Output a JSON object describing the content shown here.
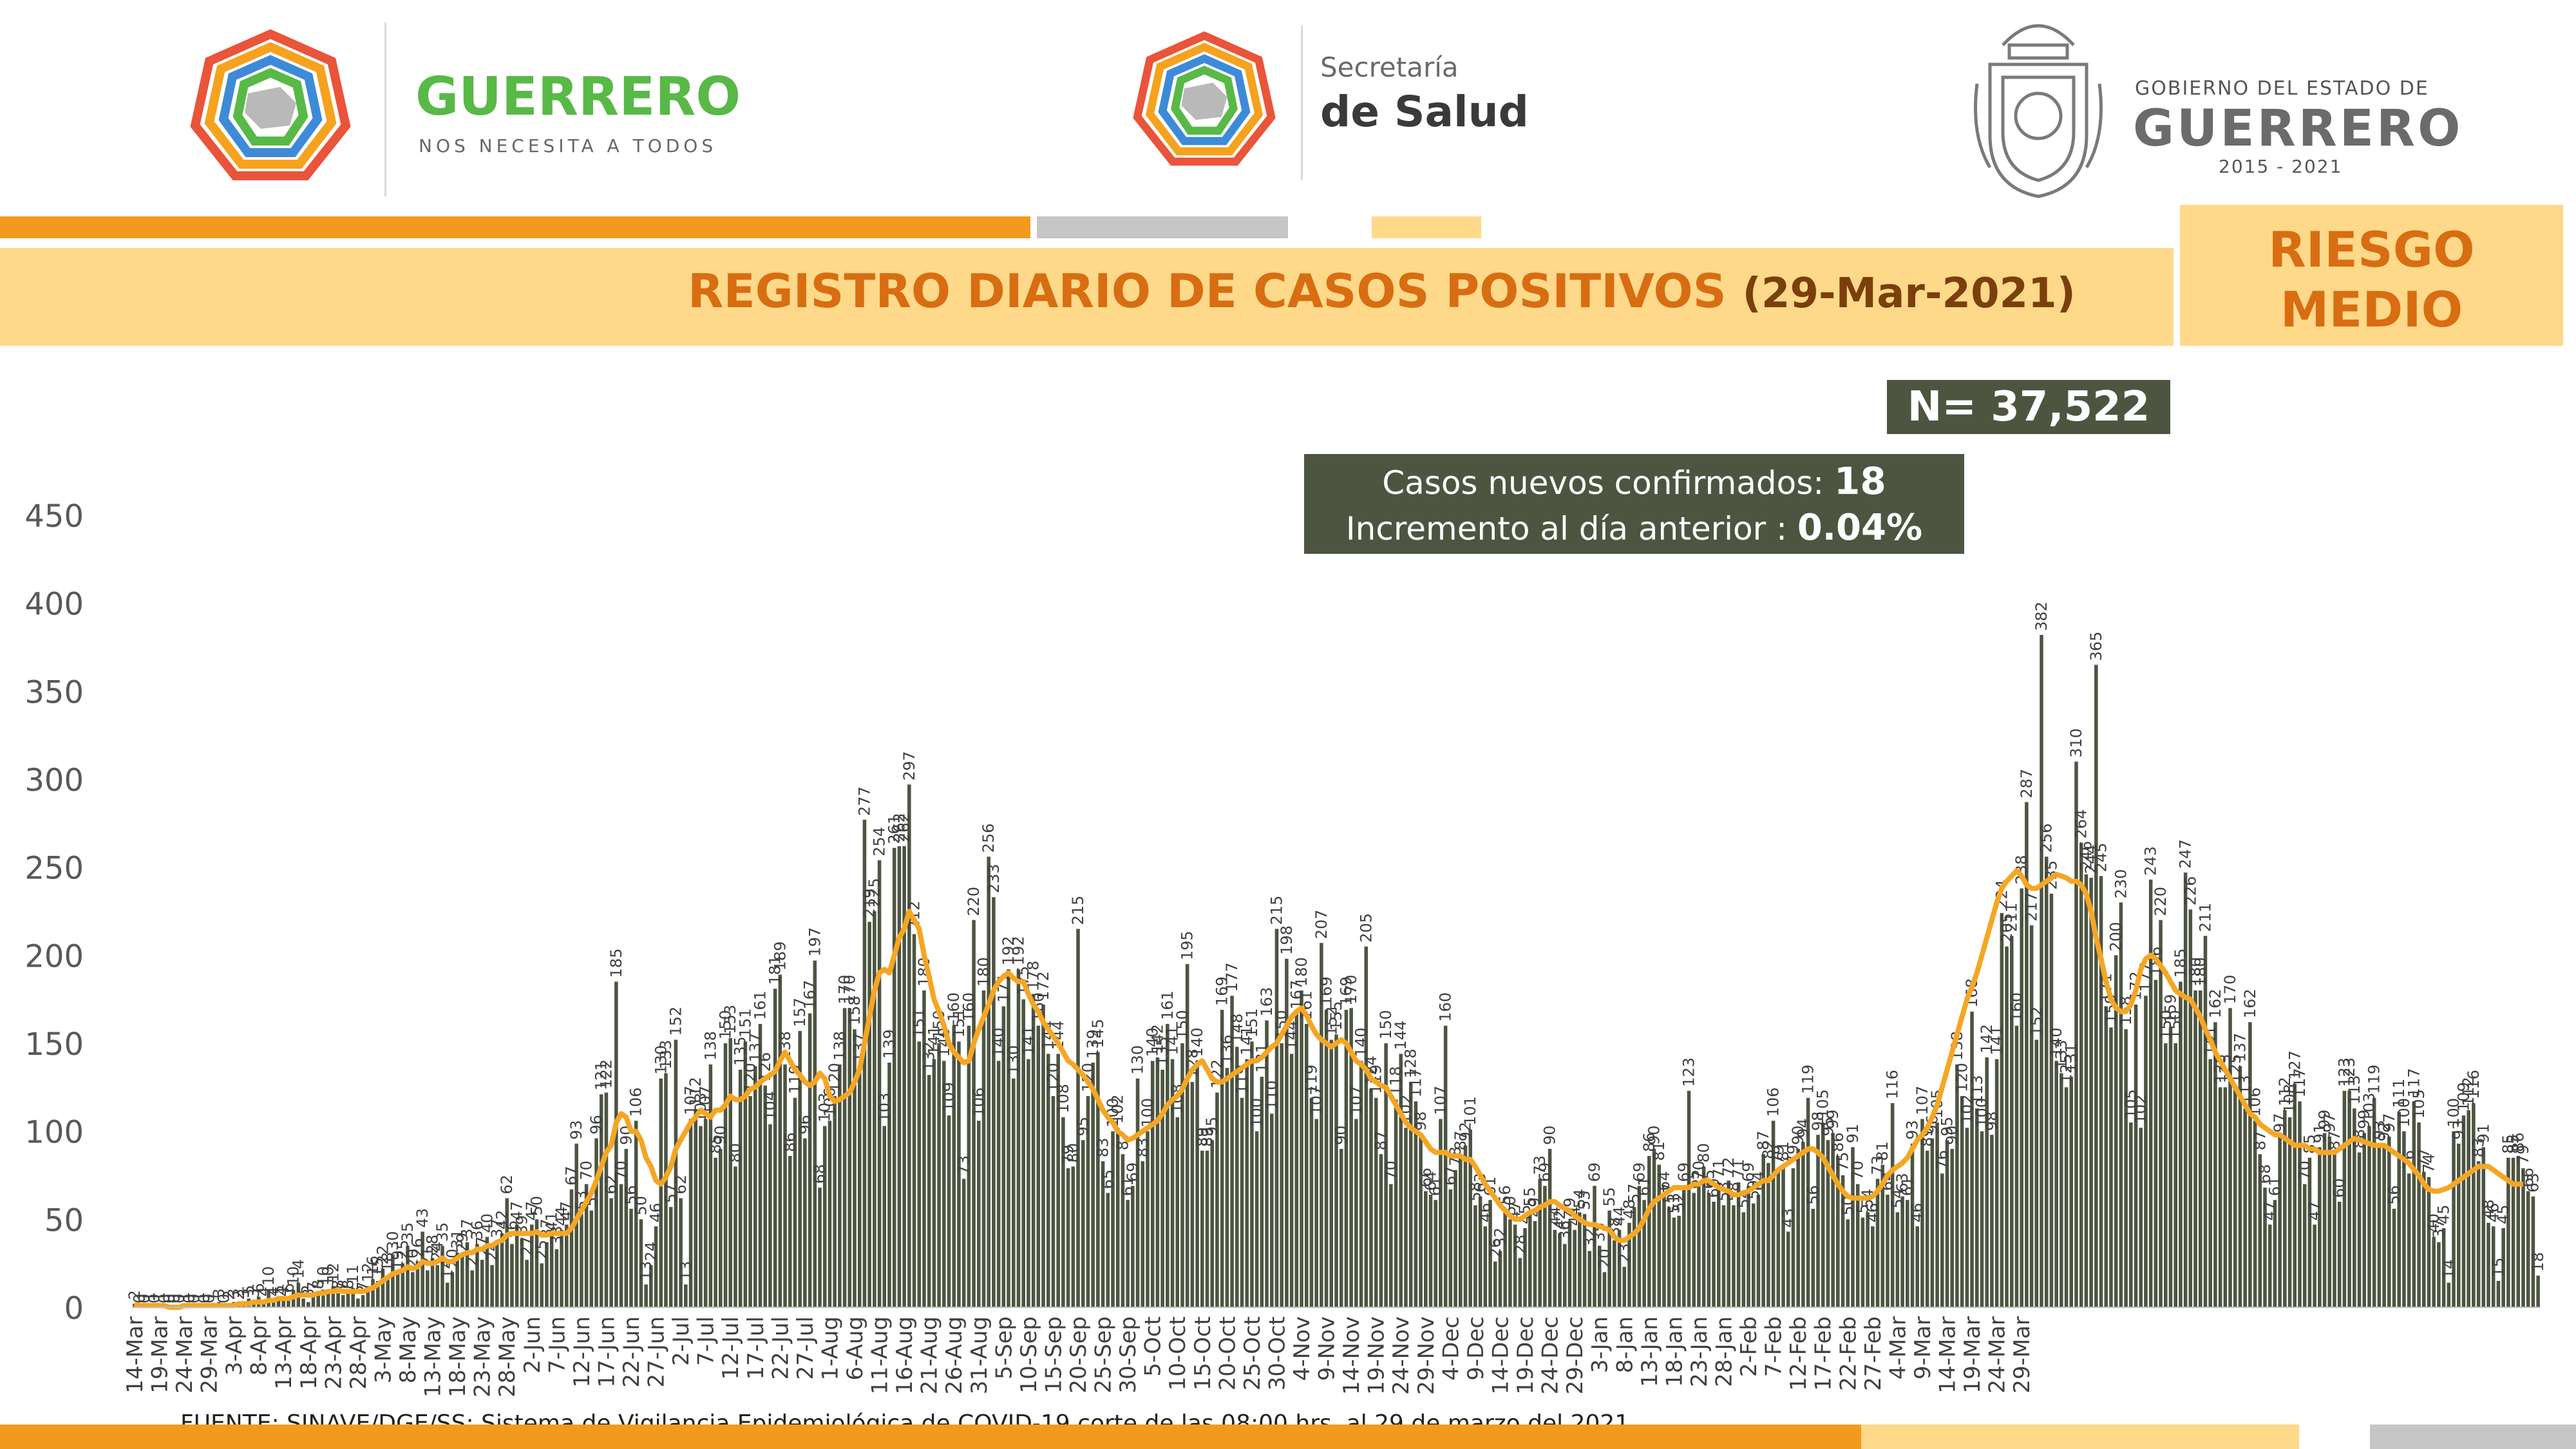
{
  "header": {
    "guerrero_logo": {
      "title": "GUERRERO",
      "subtitle": "NOS NECESITA A TODOS"
    },
    "salud_logo": {
      "line1": "Secretaría",
      "line2": "de Salud"
    },
    "gobierno_logo": {
      "line1": "GOBIERNO DEL ESTADO DE",
      "line2": "GUERRERO",
      "line3": "2015 - 2021"
    }
  },
  "banner": {
    "title": "REGISTRO DIARIO DE CASOS POSITIVOS",
    "date": "(29-Mar-2021)",
    "risk_line1": "RIESGO",
    "risk_line2": "MEDIO"
  },
  "stats": {
    "total": "N= 37,522",
    "new_cases_label": "Casos nuevos confirmados: ",
    "new_cases_value": "18",
    "increment_label": "Incremento al día anterior : ",
    "increment_value": "0.04%"
  },
  "source": "FUENTE: SINAVE/DGE/SS: Sistema de Vigilancia Epidemiológica de COVID-19 corte de las 08:00 hrs. al 29 de marzo del 2021.",
  "colors": {
    "bar": "#4d5541",
    "moving_average": "#f5a623",
    "orange": "#f39a1e",
    "gray": "#c6c6c6",
    "light_yellow": "#ffd98a",
    "title_orange": "#d86d12"
  },
  "chart_data": {
    "type": "bar",
    "ylim": [
      0,
      450
    ],
    "yticks": [
      0,
      50,
      100,
      150,
      200,
      250,
      300,
      350,
      400,
      450
    ],
    "grid": false,
    "legend": "none",
    "start_date": "14-Mar",
    "end_date": "29-Mar",
    "xtick_labels": [
      "14-Mar",
      "19-Mar",
      "24-Mar",
      "29-Mar",
      "3-Apr",
      "8-Apr",
      "13-Apr",
      "18-Apr",
      "23-Apr",
      "28-Apr",
      "3-May",
      "8-May",
      "13-May",
      "18-May",
      "23-May",
      "28-May",
      "2-Jun",
      "7-Jun",
      "12-Jun",
      "17-Jun",
      "22-Jun",
      "27-Jun",
      "2-Jul",
      "7-Jul",
      "12-Jul",
      "17-Jul",
      "22-Jul",
      "27-Jul",
      "1-Aug",
      "6-Aug",
      "11-Aug",
      "16-Aug",
      "21-Aug",
      "26-Aug",
      "31-Aug",
      "5-Sep",
      "10-Sep",
      "15-Sep",
      "20-Sep",
      "25-Sep",
      "30-Sep",
      "5-Oct",
      "10-Oct",
      "15-Oct",
      "20-Oct",
      "25-Oct",
      "30-Oct",
      "4-Nov",
      "9-Nov",
      "14-Nov",
      "19-Nov",
      "24-Nov",
      "29-Nov",
      "4-Dec",
      "9-Dec",
      "14-Dec",
      "19-Dec",
      "24-Dec",
      "29-Dec",
      "3-Jan",
      "8-Jan",
      "13-Jan",
      "18-Jan",
      "23-Jan",
      "28-Jan",
      "2-Feb",
      "7-Feb",
      "12-Feb",
      "17-Feb",
      "22-Feb",
      "27-Feb",
      "4-Mar",
      "9-Mar",
      "14-Mar",
      "19-Mar",
      "24-Mar",
      "29-Mar"
    ],
    "series": [
      {
        "values": [
          2,
          0,
          0,
          1,
          0,
          1,
          0,
          0,
          0,
          0,
          1,
          0,
          0,
          1,
          0,
          0,
          1,
          3,
          0,
          2,
          3,
          2,
          3,
          5,
          3,
          6,
          4,
          10,
          4,
          5,
          4,
          6,
          10,
          14,
          5,
          3,
          7,
          8,
          10,
          10,
          12,
          8,
          7,
          8,
          11,
          5,
          7,
          12,
          16,
          15,
          22,
          18,
          30,
          19,
          25,
          35,
          20,
          26,
          43,
          21,
          28,
          24,
          35,
          14,
          20,
          31,
          29,
          37,
          21,
          36,
          27,
          40,
          24,
          37,
          42,
          62,
          36,
          47,
          39,
          27,
          47,
          50,
          25,
          37,
          41,
          33,
          44,
          47,
          67,
          93,
          53,
          70,
          55,
          96,
          121,
          122,
          62,
          185,
          70,
          90,
          56,
          106,
          50,
          13,
          24,
          46,
          130,
          133,
          57,
          152,
          62,
          13,
          107,
          112,
          103,
          107,
          138,
          85,
          90,
          150,
          153,
          80,
          135,
          151,
          120,
          137,
          161,
          126,
          104,
          181,
          189,
          138,
          86,
          119,
          157,
          96,
          167,
          197,
          68,
          103,
          106,
          120,
          138,
          170,
          170,
          158,
          137,
          277,
          219,
          225,
          254,
          103,
          139,
          261,
          262,
          262,
          297,
          212,
          151,
          180,
          132,
          141,
          150,
          140,
          109,
          160,
          151,
          73,
          160,
          220,
          106,
          180,
          256,
          233,
          140,
          171,
          192,
          130,
          192,
          175,
          141,
          178,
          160,
          172,
          144,
          120,
          144,
          108,
          79,
          80,
          215,
          95,
          120,
          139,
          145,
          83,
          65,
          100,
          102,
          87,
          61,
          69,
          130,
          83,
          100,
          140,
          142,
          135,
          161,
          141,
          108,
          150,
          195,
          128,
          140,
          89,
          89,
          95,
          122,
          169,
          136,
          177,
          148,
          119,
          141,
          151,
          100,
          131,
          163,
          110,
          215,
          150,
          198,
          144,
          167,
          180,
          161,
          119,
          107,
          207,
          169,
          152,
          155,
          90,
          169,
          170,
          107,
          140,
          205,
          124,
          119,
          87,
          150,
          70,
          118,
          144,
          102,
          128,
          117,
          98,
          66,
          64,
          61,
          107,
          160,
          67,
          78,
          87,
          92,
          101,
          58,
          63,
          46,
          61,
          26,
          32,
          56,
          50,
          47,
          28,
          45,
          55,
          49,
          73,
          69,
          90,
          44,
          42,
          36,
          49,
          44,
          54,
          53,
          32,
          69,
          35,
          20,
          55,
          38,
          44,
          23,
          48,
          57,
          69,
          61,
          86,
          90,
          81,
          64,
          57,
          51,
          52,
          69,
          123,
          65,
          70,
          80,
          65,
          60,
          71,
          58,
          72,
          58,
          71,
          54,
          69,
          59,
          64,
          87,
          82,
          106,
          79,
          81,
          43,
          79,
          90,
          94,
          119,
          56,
          98,
          105,
          95,
          99,
          86,
          75,
          50,
          91,
          70,
          51,
          54,
          46,
          73,
          81,
          64,
          116,
          54,
          63,
          61,
          93,
          46,
          107,
          89,
          96,
          105,
          76,
          95,
          90,
          138,
          120,
          102,
          168,
          113,
          100,
          142,
          98,
          141,
          224,
          205,
          211,
          160,
          238,
          287,
          217,
          152,
          382,
          256,
          235,
          140,
          133,
          125,
          131,
          310,
          264,
          246,
          244,
          365,
          245,
          171,
          159,
          200,
          230,
          158,
          105,
          172,
          102,
          177,
          243,
          186,
          220,
          150,
          159,
          150,
          185,
          247,
          226,
          180,
          180,
          211,
          141,
          162,
          125,
          125,
          170,
          125,
          137,
          113,
          162,
          106,
          87,
          68,
          47,
          61,
          97,
          112,
          108,
          127,
          117,
          70,
          85,
          47,
          91,
          99,
          97,
          87,
          60,
          123,
          123,
          113,
          88,
          99,
          103,
          119,
          93,
          92,
          97,
          56,
          111,
          100,
          76,
          117,
          105,
          77,
          74,
          40,
          37,
          45,
          14,
          100,
          93,
          109,
          112,
          116,
          83,
          91,
          48,
          46,
          15,
          45,
          85,
          85,
          86,
          79,
          66,
          63,
          18
        ],
        "display": "bars"
      },
      {
        "values": [
          2,
          1,
          1,
          1,
          1,
          1,
          1,
          0,
          0,
          0,
          1,
          1,
          1,
          1,
          1,
          1,
          1,
          1,
          1,
          1,
          1,
          2,
          2,
          2,
          3,
          3,
          3,
          4,
          4,
          5,
          5,
          5,
          6,
          7,
          7,
          7,
          7,
          8,
          8,
          9,
          9,
          10,
          9,
          9,
          9,
          9,
          9,
          10,
          11,
          13,
          15,
          17,
          19,
          20,
          21,
          23,
          22,
          23,
          26,
          25,
          25,
          26,
          28,
          26,
          26,
          28,
          30,
          31,
          31,
          33,
          33,
          35,
          35,
          37,
          38,
          41,
          42,
          42,
          42,
          42,
          42,
          43,
          41,
          41,
          42,
          42,
          42,
          42,
          45,
          50,
          55,
          60,
          65,
          72,
          80,
          88,
          92,
          105,
          110,
          108,
          100,
          100,
          95,
          85,
          80,
          72,
          70,
          74,
          80,
          90,
          95,
          100,
          105,
          108,
          112,
          110,
          108,
          112,
          112,
          115,
          120,
          118,
          118,
          120,
          124,
          125,
          128,
          130,
          132,
          134,
          140,
          145,
          140,
          135,
          132,
          128,
          126,
          128,
          133,
          130,
          120,
          117,
          118,
          120,
          122,
          128,
          135,
          150,
          165,
          180,
          190,
          192,
          190,
          200,
          210,
          215,
          225,
          220,
          215,
          200,
          188,
          175,
          168,
          160,
          150,
          145,
          142,
          139,
          140,
          150,
          158,
          165,
          172,
          180,
          185,
          188,
          190,
          187,
          185,
          185,
          178,
          172,
          168,
          162,
          158,
          154,
          150,
          145,
          140,
          138,
          135,
          132,
          128,
          124,
          118,
          112,
          108,
          105,
          100,
          98,
          95,
          96,
          98,
          100,
          102,
          104,
          106,
          110,
          115,
          118,
          120,
          124,
          130,
          135,
          138,
          140,
          135,
          130,
          128,
          128,
          130,
          132,
          134,
          136,
          138,
          140,
          140,
          142,
          145,
          148,
          150,
          155,
          160,
          165,
          168,
          170,
          166,
          160,
          155,
          152,
          150,
          148,
          150,
          152,
          150,
          145,
          140,
          138,
          135,
          130,
          128,
          126,
          125,
          120,
          115,
          110,
          105,
          102,
          100,
          98,
          94,
          90,
          88,
          88,
          88,
          86,
          86,
          86,
          84,
          84,
          80,
          75,
          70,
          66,
          62,
          58,
          55,
          52,
          50,
          50,
          52,
          54,
          55,
          57,
          58,
          60,
          60,
          58,
          56,
          55,
          52,
          50,
          48,
          47,
          47,
          46,
          45,
          44,
          40,
          38,
          38,
          40,
          42,
          45,
          50,
          56,
          60,
          62,
          64,
          66,
          68,
          68,
          68,
          68,
          70,
          70,
          72,
          72,
          70,
          68,
          67,
          66,
          64,
          64,
          65,
          66,
          68,
          70,
          72,
          72,
          75,
          78,
          80,
          82,
          84,
          86,
          88,
          90,
          90,
          88,
          85,
          80,
          75,
          70,
          66,
          63,
          62,
          62,
          62,
          62,
          63,
          66,
          70,
          75,
          78,
          80,
          82,
          85,
          90,
          95,
          98,
          102,
          108,
          115,
          125,
          135,
          145,
          155,
          165,
          175,
          182,
          190,
          200,
          210,
          220,
          230,
          238,
          242,
          245,
          248,
          245,
          240,
          238,
          238,
          240,
          242,
          244,
          246,
          245,
          244,
          242,
          242,
          240,
          235,
          225,
          210,
          198,
          185,
          175,
          170,
          168,
          168,
          172,
          180,
          192,
          198,
          200,
          198,
          194,
          190,
          185,
          180,
          178,
          176,
          175,
          170,
          165,
          158,
          152,
          145,
          140,
          135,
          130,
          125,
          120,
          115,
          110,
          108,
          104,
          102,
          100,
          98,
          98,
          96,
          94,
          92,
          92,
          92,
          90,
          90,
          88,
          88,
          88,
          88,
          90,
          92,
          94,
          96,
          95,
          94,
          93,
          92,
          92,
          92,
          90,
          88,
          86,
          84,
          82,
          78,
          75,
          70,
          67,
          66,
          66,
          67,
          68,
          70,
          72,
          74,
          76,
          78,
          80,
          80,
          80,
          78,
          76,
          74,
          72,
          70,
          70,
          70
        ]
      }
    ]
  }
}
